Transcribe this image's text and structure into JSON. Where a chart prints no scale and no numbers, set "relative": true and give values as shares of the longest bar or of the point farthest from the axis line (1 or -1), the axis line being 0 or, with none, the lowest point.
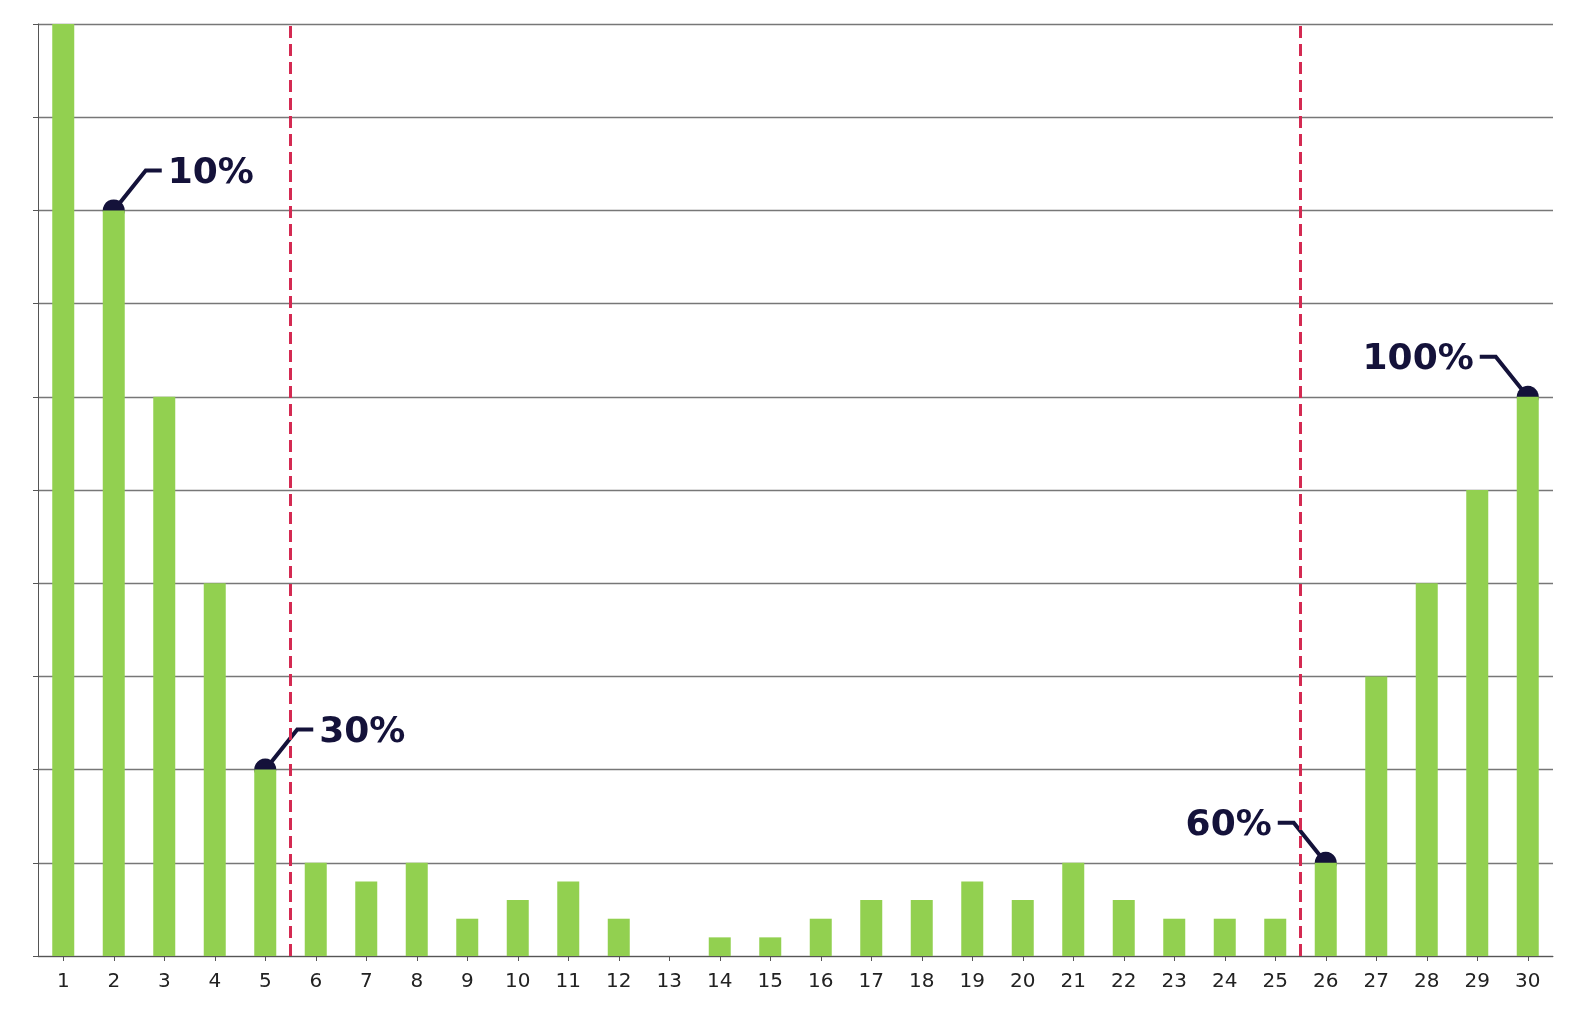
{
  "chart_data": {
    "type": "bar",
    "relative": true,
    "x": [
      1,
      2,
      3,
      4,
      5,
      6,
      7,
      8,
      9,
      10,
      11,
      12,
      13,
      14,
      15,
      16,
      17,
      18,
      19,
      20,
      21,
      22,
      23,
      24,
      25,
      26,
      27,
      28,
      29,
      30
    ],
    "xlim": [
      0.5,
      30.5
    ],
    "xticks": [
      1,
      2,
      3,
      4,
      5,
      6,
      7,
      8,
      9,
      10,
      11,
      12,
      13,
      14,
      15,
      16,
      17,
      18,
      19,
      20,
      21,
      22,
      23,
      24,
      25,
      26,
      27,
      28,
      29,
      30
    ],
    "values": [
      1,
      0.8,
      0.6,
      0.4,
      0.2,
      0.1,
      0.08,
      0.1,
      0.04,
      0.06,
      0.08,
      0.04,
      0,
      0.02,
      0.02,
      0.04,
      0.06,
      0.06,
      0.08,
      0.06,
      0.1,
      0.06,
      0.04,
      0.04,
      0.04,
      0.1,
      0.3,
      0.4,
      0.5,
      0.6
    ],
    "color": "#92d050",
    "grid": "y",
    "ref_lines": [
      {
        "axis": "x",
        "value": 5.5,
        "color": "#d42a52",
        "line_style": "dashed"
      },
      {
        "axis": "x",
        "value": 25.5,
        "color": "#d42a52",
        "line_style": "dashed"
      }
    ],
    "annotations": [
      {
        "text": "10%",
        "x": 2,
        "y": 0.8
      },
      {
        "text": "30%",
        "x": 5,
        "y": 0.2
      },
      {
        "text": "60%",
        "x": 26,
        "y": 0.1
      },
      {
        "text": "100%",
        "x": 30,
        "y": 0.6
      }
    ]
  }
}
